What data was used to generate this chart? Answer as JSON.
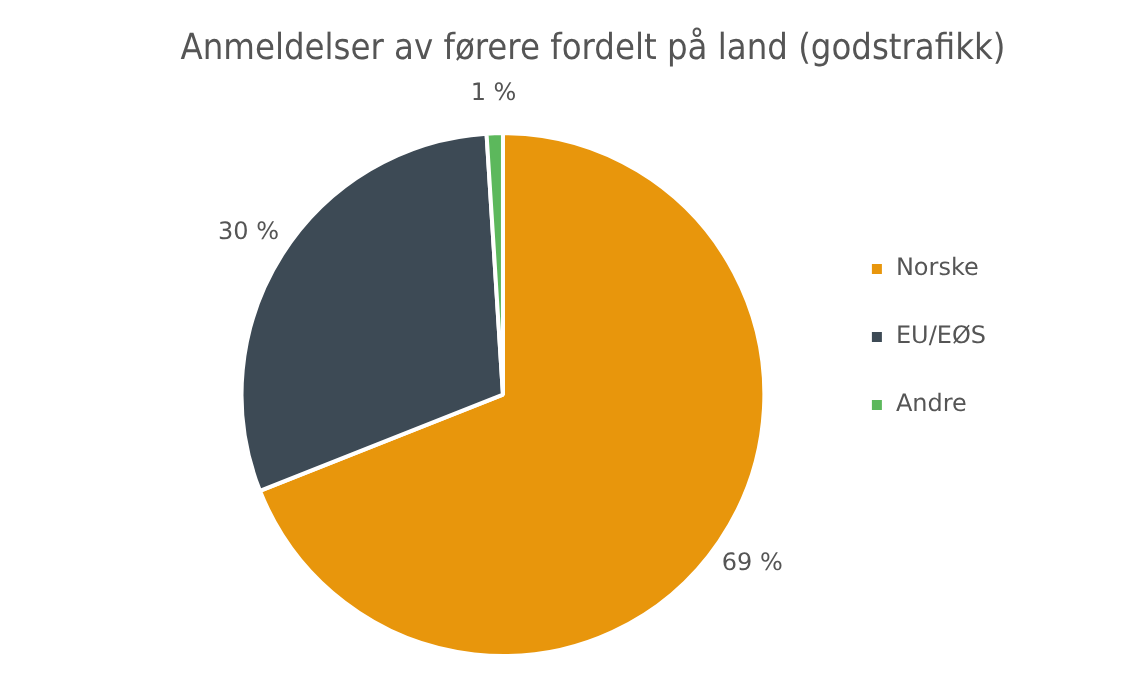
{
  "chart_data": {
    "type": "pie",
    "title": "Anmeldelser av førere fordelt på land (godstrafikk)",
    "categories": [
      "Norske",
      "EU/EØS",
      "Andre"
    ],
    "values": [
      69,
      30,
      1
    ],
    "colors": [
      "#e8960c",
      "#3d4a55",
      "#5cb85c"
    ],
    "value_labels": [
      "69 %",
      "30 %",
      "1 %"
    ],
    "legend": "right"
  }
}
